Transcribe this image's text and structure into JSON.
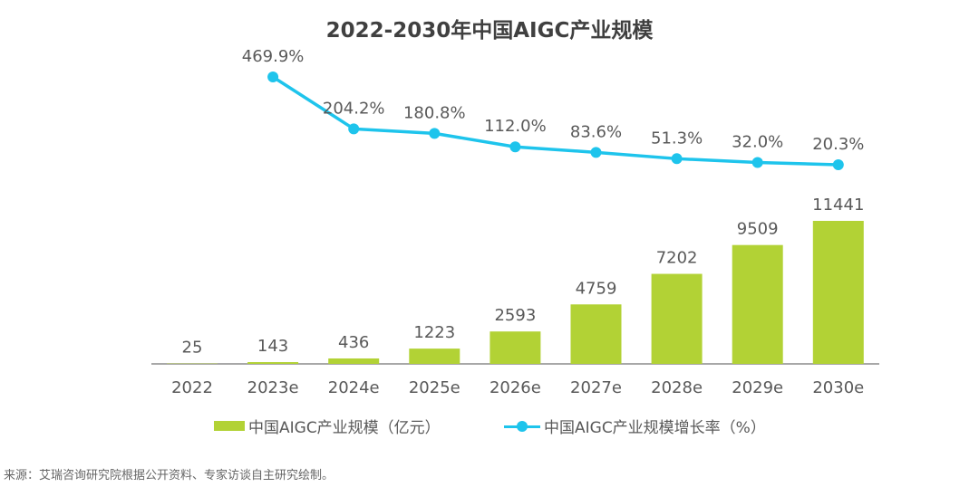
{
  "chart_data": {
    "type": "bar+line",
    "title": "2022-2030年中国AIGC产业规模",
    "categories": [
      "2022",
      "2023e",
      "2024e",
      "2025e",
      "2026e",
      "2027e",
      "2028e",
      "2029e",
      "2030e"
    ],
    "series": [
      {
        "name": "中国AIGC产业规模（亿元）",
        "type": "bar",
        "color": "#b2d235",
        "values": [
          25,
          143,
          436,
          1223,
          2593,
          4759,
          7202,
          9509,
          11441
        ],
        "labels": [
          "25",
          "143",
          "436",
          "1223",
          "2593",
          "4759",
          "7202",
          "9509",
          "11441"
        ]
      },
      {
        "name": "中国AIGC产业规模增长率（%）",
        "type": "line",
        "color": "#1ec4ec",
        "values": [
          null,
          469.9,
          204.2,
          180.8,
          112.0,
          83.6,
          51.3,
          32.0,
          20.3
        ],
        "labels": [
          "",
          "469.9%",
          "204.2%",
          "180.8%",
          "112.0%",
          "83.6%",
          "51.3%",
          "32.0%",
          "20.3%"
        ]
      }
    ],
    "legend": "bottom"
  },
  "source": "来源：艾瑞咨询研究院根据公开资料、专家访谈自主研究绘制。"
}
